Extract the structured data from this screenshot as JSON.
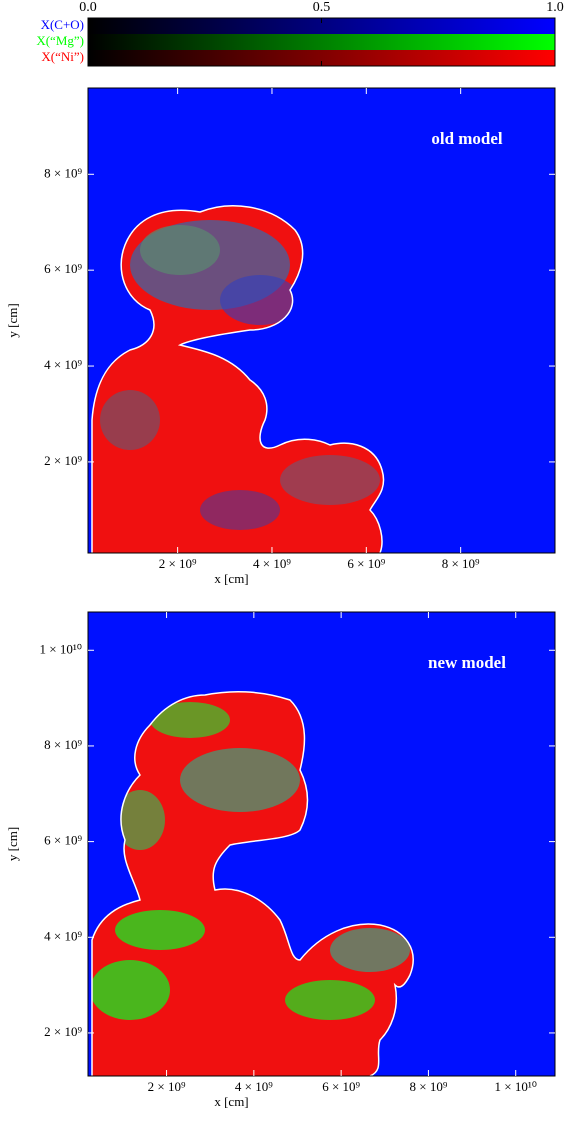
{
  "chart_data": [
    {
      "type": "colorbar",
      "series": [
        {
          "name": "X(C+O)",
          "color": "#0000ff"
        },
        {
          "name": "X(“Mg”)",
          "color": "#00ff00"
        },
        {
          "name": "X(“Ni”)",
          "color": "#ff0000"
        }
      ],
      "xlim": [
        0,
        1
      ],
      "xticks": [
        {
          "value": 0,
          "label": "0.0"
        },
        0.5,
        {
          "value": 1,
          "label": "1.0"
        }
      ]
    },
    {
      "type": "image",
      "annotation": "old model",
      "xlabel": "x [cm]",
      "ylabel": "y [cm]",
      "xlim": [
        100000000,
        10000000000
      ],
      "ylim": [
        100000000,
        9800000000
      ],
      "xticks": [
        {
          "value": 2000000000,
          "label": "2 × 10⁹"
        },
        {
          "value": 4000000000,
          "label": "4 × 10⁹"
        },
        {
          "value": 6000000000,
          "label": "6 × 10⁹"
        },
        {
          "value": 8000000000,
          "label": "8 × 10⁹"
        }
      ],
      "yticks": [
        {
          "value": 2000000000,
          "label": "2 × 10⁹"
        },
        {
          "value": 4000000000,
          "label": "4 × 10⁹"
        },
        {
          "value": 6000000000,
          "label": "6 × 10⁹"
        },
        {
          "value": 8000000000,
          "label": "8 × 10⁹"
        }
      ]
    },
    {
      "type": "image",
      "annotation": "new model",
      "xlabel": "x [cm]",
      "ylabel": "y [cm]",
      "xlim": [
        200000000,
        10900000000
      ],
      "ylim": [
        1100000000,
        10800000000
      ],
      "xticks": [
        {
          "value": 2000000000,
          "label": "2 × 10⁹"
        },
        {
          "value": 4000000000,
          "label": "4 × 10⁹"
        },
        {
          "value": 6000000000,
          "label": "6 × 10⁹"
        },
        {
          "value": 8000000000,
          "label": "8 × 10⁹"
        },
        {
          "value": 10000000000,
          "label": "1 × 10¹⁰"
        }
      ],
      "yticks": [
        {
          "value": 2000000000,
          "label": "2 × 10⁹"
        },
        {
          "value": 4000000000,
          "label": "4 × 10⁹"
        },
        {
          "value": 6000000000,
          "label": "6 × 10⁹"
        },
        {
          "value": 8000000000,
          "label": "8 × 10⁹"
        },
        {
          "value": 10000000000,
          "label": "1 × 10¹⁰"
        }
      ]
    }
  ]
}
